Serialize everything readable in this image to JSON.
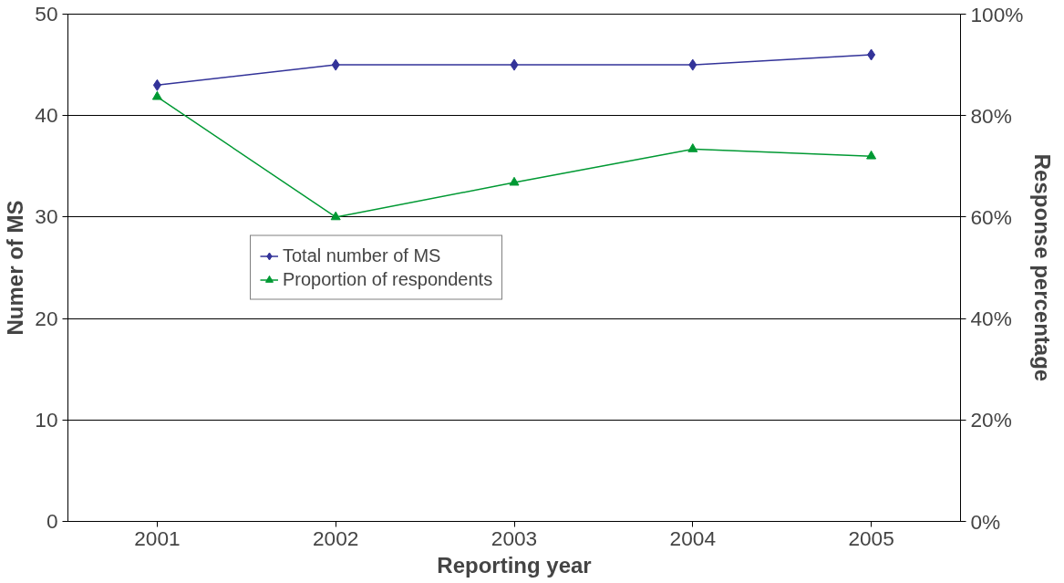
{
  "chart_data": {
    "type": "line",
    "xlabel": "Reporting year",
    "ylabel": "Numer of MS",
    "y2label": "Response percentage",
    "categories": [
      "2001",
      "2002",
      "2003",
      "2004",
      "2005"
    ],
    "series": [
      {
        "name": "Total number of MS",
        "color": "#333399",
        "marker": "diamond",
        "values": [
          43,
          45,
          45,
          45,
          46
        ]
      },
      {
        "name": "Proportion of respondents",
        "color": "#009933",
        "marker": "triangle",
        "axis": "y2",
        "values": [
          83.7,
          60,
          66.8,
          73.4,
          72
        ]
      }
    ],
    "ylim": [
      0,
      50
    ],
    "yticks": [
      0,
      10,
      20,
      30,
      40,
      50
    ],
    "y2lim": [
      0,
      100
    ],
    "y2ticks": [
      {
        "value": 0,
        "label": "0%"
      },
      {
        "value": 20,
        "label": "20%"
      },
      {
        "value": 40,
        "label": "40%"
      },
      {
        "value": 60,
        "label": "60%"
      },
      {
        "value": 80,
        "label": "80%"
      },
      {
        "value": 100,
        "label": "100%"
      }
    ],
    "grid": "y",
    "legend": "left",
    "line_style": "solid"
  }
}
